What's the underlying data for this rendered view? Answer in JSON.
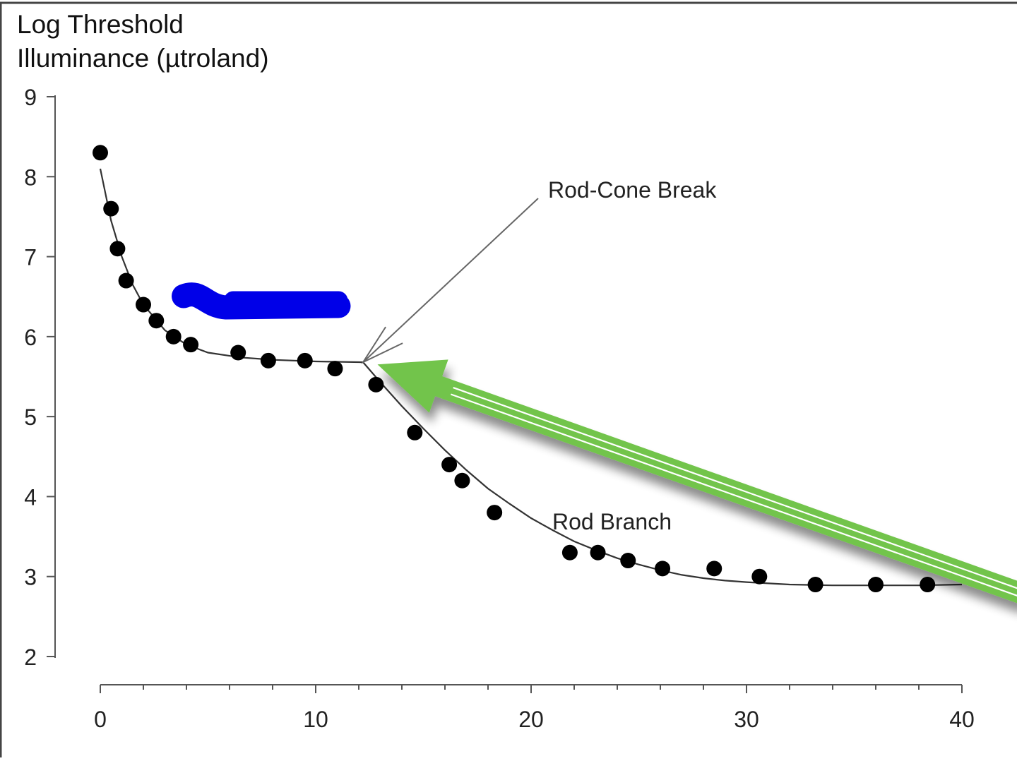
{
  "chart_data": {
    "type": "scatter",
    "title": "",
    "ylabel_lines": [
      "Log Threshold",
      "Illuminance (µtroland)"
    ],
    "xlabel": "",
    "xlim": [
      0,
      40
    ],
    "ylim": [
      2,
      9
    ],
    "x_ticks": [
      0,
      10,
      20,
      30,
      40
    ],
    "y_ticks": [
      2,
      3,
      4,
      5,
      6,
      7,
      8,
      9
    ],
    "grid": false,
    "legend": "none",
    "series": [
      {
        "points": [
          {
            "x": 0.0,
            "y": 8.3
          },
          {
            "x": 0.5,
            "y": 7.6
          },
          {
            "x": 0.8,
            "y": 7.1
          },
          {
            "x": 1.2,
            "y": 6.7
          },
          {
            "x": 2.0,
            "y": 6.4
          },
          {
            "x": 2.6,
            "y": 6.2
          },
          {
            "x": 3.4,
            "y": 6.0
          },
          {
            "x": 4.2,
            "y": 5.9
          },
          {
            "x": 6.4,
            "y": 5.8
          },
          {
            "x": 7.8,
            "y": 5.7
          },
          {
            "x": 9.5,
            "y": 5.7
          },
          {
            "x": 10.9,
            "y": 5.6
          },
          {
            "x": 12.8,
            "y": 5.4
          },
          {
            "x": 14.6,
            "y": 4.8
          },
          {
            "x": 16.2,
            "y": 4.4
          },
          {
            "x": 16.8,
            "y": 4.2
          },
          {
            "x": 18.3,
            "y": 3.8
          },
          {
            "x": 21.8,
            "y": 3.3
          },
          {
            "x": 23.1,
            "y": 3.3
          },
          {
            "x": 24.5,
            "y": 3.2
          },
          {
            "x": 26.1,
            "y": 3.1
          },
          {
            "x": 28.5,
            "y": 3.1
          },
          {
            "x": 30.6,
            "y": 3.0
          },
          {
            "x": 33.2,
            "y": 2.9
          },
          {
            "x": 36.0,
            "y": 2.9
          },
          {
            "x": 38.4,
            "y": 2.9
          }
        ],
        "color": "#000000"
      }
    ],
    "fit_curve": [
      {
        "x": 0.0,
        "y": 8.1
      },
      {
        "x": 0.5,
        "y": 7.45
      },
      {
        "x": 1.0,
        "y": 7.0
      },
      {
        "x": 1.5,
        "y": 6.65
      },
      {
        "x": 2.0,
        "y": 6.4
      },
      {
        "x": 3.0,
        "y": 6.08
      },
      {
        "x": 4.0,
        "y": 5.9
      },
      {
        "x": 5.0,
        "y": 5.8
      },
      {
        "x": 6.5,
        "y": 5.74
      },
      {
        "x": 8.0,
        "y": 5.71
      },
      {
        "x": 10.0,
        "y": 5.69
      },
      {
        "x": 12.2,
        "y": 5.68
      },
      {
        "x": 13.0,
        "y": 5.43
      },
      {
        "x": 14.0,
        "y": 5.13
      },
      {
        "x": 15.0,
        "y": 4.85
      },
      {
        "x": 16.0,
        "y": 4.58
      },
      {
        "x": 17.0,
        "y": 4.33
      },
      {
        "x": 18.0,
        "y": 4.1
      },
      {
        "x": 19.0,
        "y": 3.91
      },
      {
        "x": 20.0,
        "y": 3.73
      },
      {
        "x": 21.0,
        "y": 3.58
      },
      {
        "x": 22.0,
        "y": 3.44
      },
      {
        "x": 23.0,
        "y": 3.33
      },
      {
        "x": 24.0,
        "y": 3.23
      },
      {
        "x": 25.0,
        "y": 3.15
      },
      {
        "x": 26.0,
        "y": 3.08
      },
      {
        "x": 27.0,
        "y": 3.02
      },
      {
        "x": 28.0,
        "y": 2.98
      },
      {
        "x": 29.0,
        "y": 2.95
      },
      {
        "x": 30.0,
        "y": 2.93
      },
      {
        "x": 32.0,
        "y": 2.9
      },
      {
        "x": 34.0,
        "y": 2.89
      },
      {
        "x": 36.0,
        "y": 2.89
      },
      {
        "x": 38.0,
        "y": 2.89
      },
      {
        "x": 40.0,
        "y": 2.9
      }
    ],
    "annotations": [
      {
        "text": "Rod-Cone Break",
        "arrow_to": {
          "x": 12.2,
          "y": 5.68
        }
      },
      {
        "text": "Rod Branch"
      }
    ],
    "overlays": {
      "blue_marker_color": "#0000e8",
      "blue_marker_span": {
        "x": [
          4.0,
          11.0
        ],
        "y": 6.4
      },
      "green_arrow_color": "#72c44c",
      "green_arrow_target": {
        "x": 13.0,
        "y": 5.67
      }
    }
  }
}
